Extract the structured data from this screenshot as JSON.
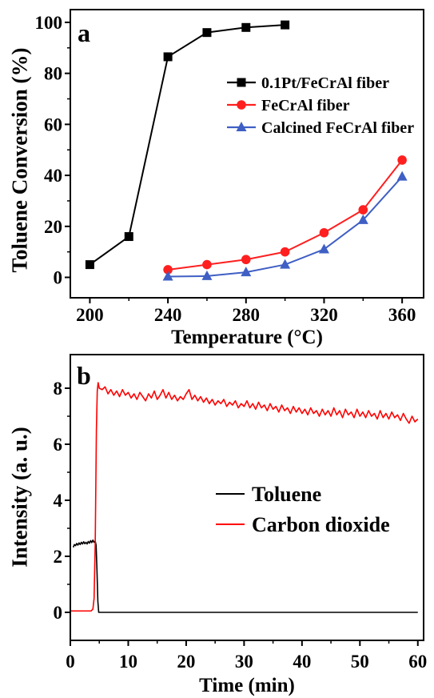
{
  "chart_data": [
    {
      "panel_label": "a",
      "type": "line",
      "xlabel": "Temperature (°C)",
      "ylabel": "Toluene Conversion (%)",
      "xlim": [
        190,
        371
      ],
      "ylim": [
        -8,
        105
      ],
      "xticks": [
        200,
        240,
        280,
        320,
        360
      ],
      "yticks": [
        0,
        20,
        40,
        60,
        80,
        100
      ],
      "grid": false,
      "legend_position": "upper-right",
      "series": [
        {
          "name": "0.1Pt/FeCrAl fiber",
          "color": "#000000",
          "marker": "square",
          "points": [
            [
              200,
              5
            ],
            [
              220,
              16
            ],
            [
              240,
              86.5
            ],
            [
              260,
              96
            ],
            [
              280,
              98
            ],
            [
              300,
              99
            ]
          ]
        },
        {
          "name": "FeCrAl fiber",
          "color": "#ff1f1f",
          "marker": "circle",
          "points": [
            [
              240,
              3
            ],
            [
              260,
              5
            ],
            [
              280,
              7
            ],
            [
              300,
              10
            ],
            [
              320,
              17.5
            ],
            [
              340,
              26.5
            ],
            [
              360,
              46
            ]
          ]
        },
        {
          "name": "Calcined FeCrAl fiber",
          "color": "#3f5fc4",
          "marker": "triangle",
          "points": [
            [
              240,
              0.3
            ],
            [
              260,
              0.5
            ],
            [
              280,
              2
            ],
            [
              300,
              5
            ],
            [
              320,
              11
            ],
            [
              340,
              22.5
            ],
            [
              360,
              39.5
            ]
          ]
        }
      ]
    },
    {
      "panel_label": "b",
      "type": "line",
      "xlabel": "Time (min)",
      "ylabel": "Intensity (a. u.)",
      "xlim": [
        0,
        61
      ],
      "ylim": [
        -1,
        9.2
      ],
      "xticks": [
        0,
        10,
        20,
        30,
        40,
        50,
        60
      ],
      "yticks": [
        0,
        2,
        4,
        6,
        8
      ],
      "grid": false,
      "legend_position": "center-right",
      "series": [
        {
          "name": "Toluene",
          "color": "#000000",
          "points": [
            [
              0.5,
              2.32
            ],
            [
              0.7,
              2.42
            ],
            [
              0.9,
              2.38
            ],
            [
              1.1,
              2.46
            ],
            [
              1.3,
              2.4
            ],
            [
              1.5,
              2.48
            ],
            [
              1.7,
              2.42
            ],
            [
              1.9,
              2.5
            ],
            [
              2.1,
              2.44
            ],
            [
              2.3,
              2.52
            ],
            [
              2.5,
              2.45
            ],
            [
              2.7,
              2.5
            ],
            [
              2.9,
              2.44
            ],
            [
              3.1,
              2.53
            ],
            [
              3.3,
              2.47
            ],
            [
              3.5,
              2.56
            ],
            [
              3.7,
              2.49
            ],
            [
              3.9,
              2.58
            ],
            [
              4.1,
              2.5
            ],
            [
              4.3,
              2.54
            ],
            [
              4.45,
              2.4
            ],
            [
              4.6,
              1.5
            ],
            [
              4.75,
              0.4
            ],
            [
              4.9,
              0
            ],
            [
              60,
              0
            ]
          ]
        },
        {
          "name": "Carbon dioxide",
          "color": "#ff0000",
          "points": [
            [
              0,
              0.05
            ],
            [
              3.6,
              0.05
            ],
            [
              3.9,
              0.12
            ],
            [
              4.1,
              0.5
            ],
            [
              4.3,
              2.5
            ],
            [
              4.5,
              6.5
            ],
            [
              4.65,
              7.9
            ],
            [
              4.8,
              8.2
            ],
            [
              5.0,
              8.0
            ],
            [
              5.5,
              7.95
            ],
            [
              6.0,
              8.05
            ],
            [
              6.5,
              7.8
            ],
            [
              7.0,
              7.95
            ],
            [
              7.5,
              7.75
            ],
            [
              8.0,
              7.9
            ],
            [
              8.5,
              7.7
            ],
            [
              9.0,
              7.95
            ],
            [
              9.5,
              7.75
            ],
            [
              10.0,
              7.85
            ],
            [
              10.5,
              7.65
            ],
            [
              11.0,
              7.8
            ],
            [
              11.5,
              7.6
            ],
            [
              12.0,
              7.85
            ],
            [
              12.5,
              7.7
            ],
            [
              13.0,
              7.55
            ],
            [
              13.5,
              7.8
            ],
            [
              14.0,
              7.65
            ],
            [
              14.5,
              7.9
            ],
            [
              15.0,
              7.6
            ],
            [
              15.5,
              7.75
            ],
            [
              16.0,
              7.95
            ],
            [
              16.5,
              7.65
            ],
            [
              17.0,
              7.85
            ],
            [
              17.5,
              7.6
            ],
            [
              18.0,
              7.75
            ],
            [
              18.5,
              7.55
            ],
            [
              19.0,
              7.7
            ],
            [
              19.5,
              7.6
            ],
            [
              20.0,
              7.8
            ],
            [
              20.5,
              7.95
            ],
            [
              21.0,
              7.6
            ],
            [
              21.5,
              7.75
            ],
            [
              22.0,
              7.55
            ],
            [
              22.5,
              7.7
            ],
            [
              23.0,
              7.5
            ],
            [
              23.5,
              7.65
            ],
            [
              24.0,
              7.45
            ],
            [
              24.5,
              7.6
            ],
            [
              25.0,
              7.4
            ],
            [
              25.5,
              7.55
            ],
            [
              26.0,
              7.45
            ],
            [
              26.5,
              7.6
            ],
            [
              27.0,
              7.35
            ],
            [
              27.5,
              7.5
            ],
            [
              28.0,
              7.4
            ],
            [
              28.5,
              7.55
            ],
            [
              29.0,
              7.3
            ],
            [
              29.5,
              7.45
            ],
            [
              30.0,
              7.35
            ],
            [
              30.5,
              7.55
            ],
            [
              31.0,
              7.3
            ],
            [
              31.5,
              7.45
            ],
            [
              32.0,
              7.25
            ],
            [
              32.5,
              7.5
            ],
            [
              33.0,
              7.3
            ],
            [
              33.5,
              7.4
            ],
            [
              34.0,
              7.2
            ],
            [
              34.5,
              7.45
            ],
            [
              35.0,
              7.25
            ],
            [
              35.5,
              7.35
            ],
            [
              36.0,
              7.15
            ],
            [
              36.5,
              7.4
            ],
            [
              37.0,
              7.2
            ],
            [
              37.5,
              7.3
            ],
            [
              38.0,
              7.1
            ],
            [
              38.5,
              7.35
            ],
            [
              39.0,
              7.15
            ],
            [
              39.5,
              7.3
            ],
            [
              40.0,
              7.1
            ],
            [
              40.5,
              7.25
            ],
            [
              41.0,
              7.05
            ],
            [
              41.5,
              7.3
            ],
            [
              42.0,
              7.1
            ],
            [
              42.5,
              7.2
            ],
            [
              43.0,
              7.0
            ],
            [
              43.5,
              7.25
            ],
            [
              44.0,
              7.05
            ],
            [
              44.5,
              7.2
            ],
            [
              45.0,
              7.0
            ],
            [
              45.5,
              7.3
            ],
            [
              46.0,
              7.05
            ],
            [
              46.5,
              7.2
            ],
            [
              47.0,
              6.95
            ],
            [
              47.5,
              7.25
            ],
            [
              48.0,
              7.05
            ],
            [
              48.5,
              7.15
            ],
            [
              49.0,
              6.95
            ],
            [
              49.5,
              7.25
            ],
            [
              50.0,
              7.0
            ],
            [
              50.5,
              7.15
            ],
            [
              51.0,
              6.95
            ],
            [
              51.5,
              7.2
            ],
            [
              52.0,
              7.0
            ],
            [
              52.5,
              7.1
            ],
            [
              53.0,
              6.9
            ],
            [
              53.5,
              7.2
            ],
            [
              54.0,
              6.95
            ],
            [
              54.5,
              7.1
            ],
            [
              55.0,
              6.9
            ],
            [
              55.5,
              7.15
            ],
            [
              56.0,
              6.95
            ],
            [
              56.5,
              7.05
            ],
            [
              57.0,
              6.85
            ],
            [
              57.5,
              7.1
            ],
            [
              58.0,
              6.9
            ],
            [
              58.5,
              6.75
            ],
            [
              59.0,
              7.0
            ],
            [
              59.5,
              6.8
            ],
            [
              60.0,
              6.9
            ]
          ]
        }
      ]
    }
  ]
}
